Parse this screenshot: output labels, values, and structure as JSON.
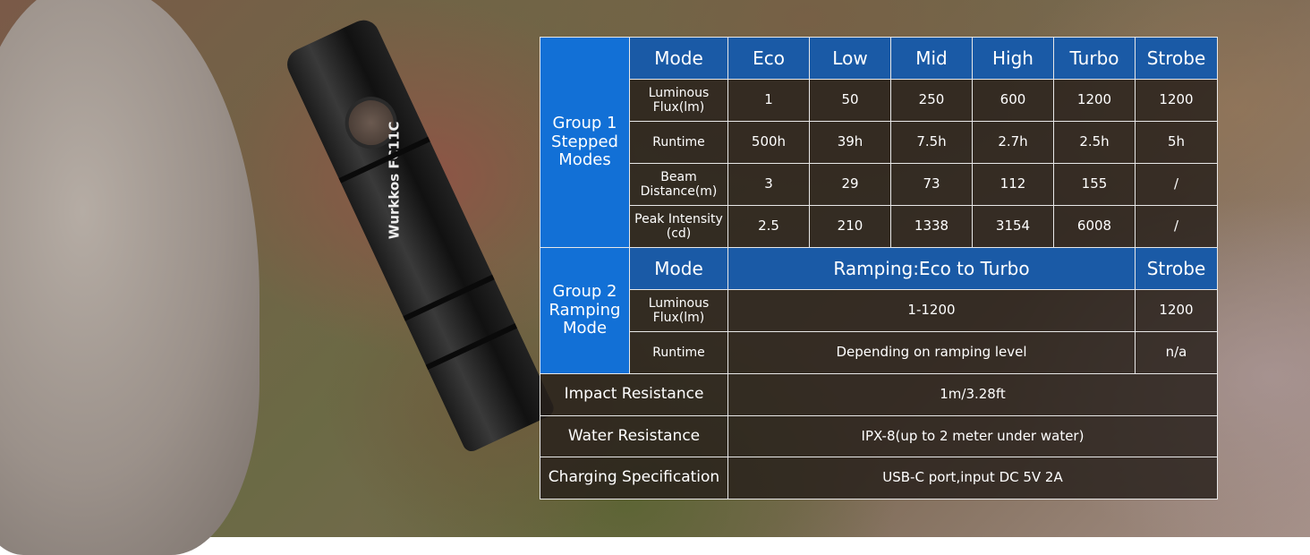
{
  "product": {
    "logo_text": "Wurkkos FC11C"
  },
  "group1": {
    "label": "Group 1\nStepped\nModes",
    "header": [
      "Mode",
      "Eco",
      "Low",
      "Mid",
      "High",
      "Turbo",
      "Strobe"
    ],
    "rows": [
      {
        "label": "Luminous\nFlux(lm)",
        "values": [
          "1",
          "50",
          "250",
          "600",
          "1200",
          "1200"
        ]
      },
      {
        "label": "Runtime",
        "values": [
          "500h",
          "39h",
          "7.5h",
          "2.7h",
          "2.5h",
          "5h"
        ]
      },
      {
        "label": "Beam\nDistance(m)",
        "values": [
          "3",
          "29",
          "73",
          "112",
          "155",
          "/"
        ]
      },
      {
        "label": "Peak Intensity\n(cd)",
        "values": [
          "2.5",
          "210",
          "1338",
          "3154",
          "6008",
          "/"
        ]
      }
    ]
  },
  "group2": {
    "label": "Group 2\nRamping\nMode",
    "header": [
      "Mode",
      "Ramping:Eco to Turbo",
      "Strobe"
    ],
    "rows": [
      {
        "label": "Luminous\nFlux(lm)",
        "values": [
          "1-1200",
          "1200"
        ]
      },
      {
        "label": "Runtime",
        "values": [
          "Depending on ramping level",
          "n/a"
        ]
      }
    ]
  },
  "specs": [
    {
      "label": "Impact Resistance",
      "value": "1m/3.28ft"
    },
    {
      "label": "Water Resistance",
      "value": "IPX-8(up to 2 meter under water)"
    },
    {
      "label": "Charging Specification",
      "value": "USB-C port,input DC 5V 2A"
    }
  ],
  "colors": {
    "header_blue": "#1a5aa6",
    "group_blue": "#1270d6"
  }
}
